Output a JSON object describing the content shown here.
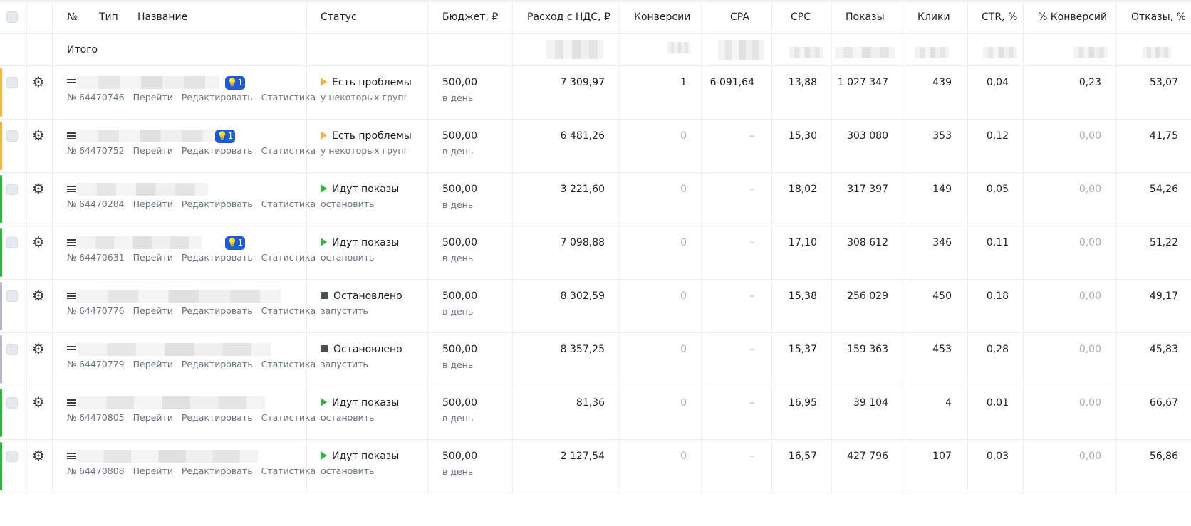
{
  "header": {
    "number": "№",
    "type": "Тип",
    "name": "Название",
    "status": "Статус",
    "budget": "Бюджет, ₽",
    "spend": "Расход с НДС, ₽",
    "conversions": "Конверсии",
    "cpa": "CPA",
    "cpc": "CPC",
    "impressions": "Показы",
    "clicks": "Клики",
    "ctr": "CTR, %",
    "conv_rate": "% Конверсий",
    "bounces": "Отказы, %"
  },
  "total": {
    "label": "Итого"
  },
  "links": {
    "go": "Перейти",
    "edit": "Редактировать",
    "stats": "Статистика"
  },
  "colors": {
    "warning": "#f2b13d",
    "running": "#2fb53a",
    "stopped": "#b6b9c7",
    "badge": "#1f59d6"
  },
  "rows": [
    {
      "id": "№ 64470746",
      "badge": "1",
      "status": "Есть проблемы",
      "status_sub": "у некоторых групп е",
      "budget": "500,00",
      "budget_sub": "в день",
      "spend": "7 309,97",
      "conversions": "1",
      "cpa": "6 091,64",
      "cpc": "13,88",
      "impressions": "1 027 347",
      "clicks": "439",
      "ctr": "0,04",
      "conv_rate": "0,23",
      "bounces": "53,07"
    },
    {
      "id": "№ 64470752",
      "badge": "1",
      "status": "Есть проблемы",
      "status_sub": "у некоторых групп е",
      "budget": "500,00",
      "budget_sub": "в день",
      "spend": "6 481,26",
      "conversions": "0",
      "cpa": "–",
      "cpc": "15,30",
      "impressions": "303 080",
      "clicks": "353",
      "ctr": "0,12",
      "conv_rate": "0,00",
      "bounces": "41,75"
    },
    {
      "id": "№ 64470284",
      "status": "Идут показы",
      "status_sub": "остановить",
      "budget": "500,00",
      "budget_sub": "в день",
      "spend": "3 221,60",
      "conversions": "0",
      "cpa": "–",
      "cpc": "18,02",
      "impressions": "317 397",
      "clicks": "149",
      "ctr": "0,05",
      "conv_rate": "0,00",
      "bounces": "54,26"
    },
    {
      "id": "№ 64470631",
      "badge": "1",
      "status": "Идут показы",
      "status_sub": "остановить",
      "budget": "500,00",
      "budget_sub": "в день",
      "spend": "7 098,88",
      "conversions": "0",
      "cpa": "–",
      "cpc": "17,10",
      "impressions": "308 612",
      "clicks": "346",
      "ctr": "0,11",
      "conv_rate": "0,00",
      "bounces": "51,22"
    },
    {
      "id": "№ 64470776",
      "status": "Остановлено",
      "status_sub": "запустить",
      "budget": "500,00",
      "budget_sub": "в день",
      "spend": "8 302,59",
      "conversions": "0",
      "cpa": "–",
      "cpc": "15,38",
      "impressions": "256 029",
      "clicks": "450",
      "ctr": "0,18",
      "conv_rate": "0,00",
      "bounces": "49,17"
    },
    {
      "id": "№ 64470779",
      "status": "Остановлено",
      "status_sub": "запустить",
      "budget": "500,00",
      "budget_sub": "в день",
      "spend": "8 357,25",
      "conversions": "0",
      "cpa": "–",
      "cpc": "15,37",
      "impressions": "159 363",
      "clicks": "453",
      "ctr": "0,28",
      "conv_rate": "0,00",
      "bounces": "45,83"
    },
    {
      "id": "№ 64470805",
      "status": "Идут показы",
      "status_sub": "остановить",
      "budget": "500,00",
      "budget_sub": "в день",
      "spend": "81,36",
      "conversions": "0",
      "cpa": "–",
      "cpc": "16,95",
      "impressions": "39 104",
      "clicks": "4",
      "ctr": "0,01",
      "conv_rate": "0,00",
      "bounces": "66,67"
    },
    {
      "id": "№ 64470808",
      "status": "Идут показы",
      "status_sub": "остановить",
      "budget": "500,00",
      "budget_sub": "в день",
      "spend": "2 127,54",
      "conversions": "0",
      "cpa": "–",
      "cpc": "16,57",
      "impressions": "427 796",
      "clicks": "107",
      "ctr": "0,03",
      "conv_rate": "0,00",
      "bounces": "56,86"
    }
  ]
}
